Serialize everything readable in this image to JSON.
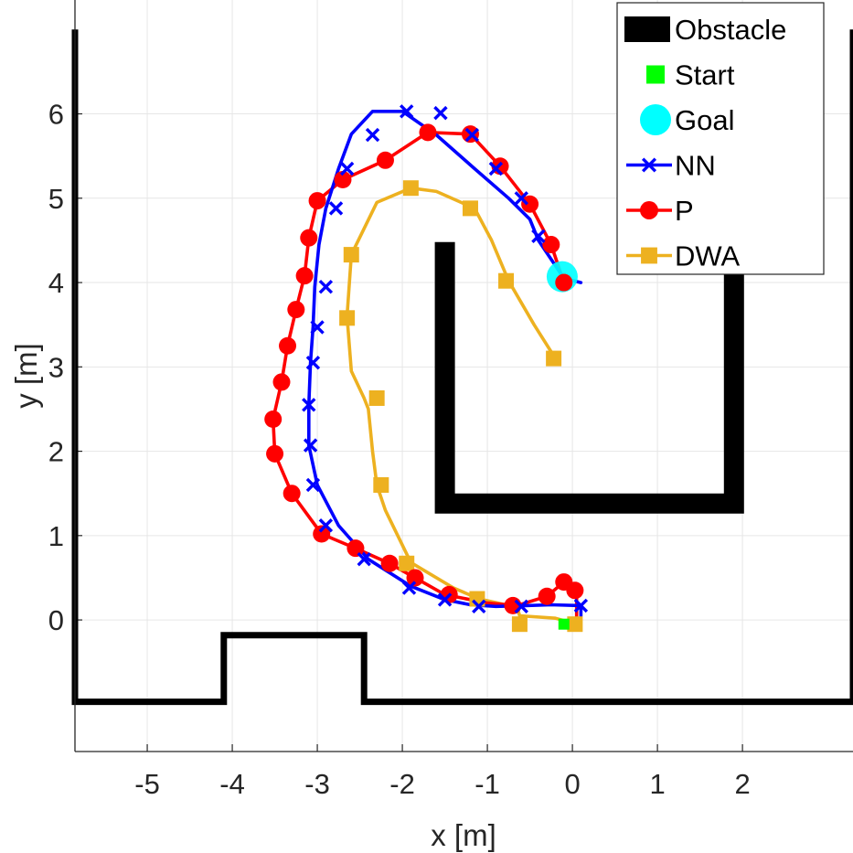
{
  "chart_data": {
    "type": "line",
    "xlabel": "x [m]",
    "ylabel": "y [m]",
    "xlim": [
      -5.85,
      3.3
    ],
    "ylim": [
      -1.56,
      7.35
    ],
    "xticks": [
      -5,
      -4,
      -3,
      -2,
      -1,
      0,
      1,
      2
    ],
    "yticks": [
      0,
      1,
      2,
      3,
      4,
      5,
      6
    ],
    "grid": true,
    "legend_position": "top-right",
    "obstacles": [
      {
        "name": "bottom-wall",
        "points": [
          [
            -5.85,
            7.0
          ],
          [
            -5.85,
            -0.97
          ],
          [
            -4.1,
            -0.97
          ],
          [
            -4.1,
            -0.18
          ],
          [
            -2.45,
            -0.18
          ],
          [
            -2.45,
            -0.97
          ],
          [
            3.3,
            -0.97
          ],
          [
            3.3,
            7.0
          ]
        ]
      },
      {
        "name": "u-obstacle",
        "points": [
          [
            -1.5,
            4.48
          ],
          [
            -1.5,
            1.38
          ],
          [
            1.9,
            1.38
          ],
          [
            1.9,
            4.48
          ]
        ]
      }
    ],
    "start": {
      "x": -0.1,
      "y": -0.05
    },
    "goal": {
      "x": -0.12,
      "y": 4.07
    },
    "series": [
      {
        "name": "NN",
        "color": "#0000ff",
        "marker": "x",
        "x": [
          0.1,
          0.1,
          -0.25,
          -0.55,
          -0.9,
          -1.2,
          -1.5,
          -1.9,
          -2.4,
          -2.75,
          -3.0,
          -3.1,
          -3.1,
          -3.08,
          -3.05,
          -3.03,
          -2.98,
          -2.9,
          -2.75,
          -2.6,
          -2.35,
          -2.0,
          -1.6,
          -1.15,
          -0.75,
          -0.5,
          -0.4,
          -0.1,
          0.1
        ],
        "y": [
          0.05,
          0.17,
          0.18,
          0.17,
          0.16,
          0.18,
          0.24,
          0.4,
          0.72,
          1.12,
          1.6,
          2.07,
          2.55,
          3.05,
          3.47,
          3.95,
          4.45,
          4.88,
          5.35,
          5.76,
          6.03,
          6.03,
          5.75,
          5.35,
          5.0,
          4.75,
          4.5,
          4.05,
          4.0
        ],
        "marker_x": [
          0.1,
          -0.6,
          -1.1,
          -1.5,
          -1.92,
          -2.45,
          -2.9,
          -3.05,
          -3.08,
          -3.1,
          -3.05,
          -3.0,
          -2.9,
          -2.78,
          -2.65,
          -2.35,
          -1.95,
          -1.55,
          -1.18,
          -0.9,
          -0.6,
          -0.4
        ],
        "marker_y": [
          0.17,
          0.16,
          0.16,
          0.24,
          0.38,
          0.72,
          1.12,
          1.6,
          2.07,
          2.55,
          3.05,
          3.47,
          3.95,
          4.88,
          5.35,
          5.75,
          6.03,
          6.01,
          5.75,
          5.35,
          5.0,
          4.55
        ]
      },
      {
        "name": "P",
        "color": "#ff0000",
        "marker": "o",
        "x": [
          0.05,
          0.05,
          -0.1,
          -0.3,
          -0.65,
          -1.0,
          -1.5,
          -1.85,
          -2.15,
          -2.55,
          -2.95,
          -3.3,
          -3.5,
          -3.52,
          -3.42,
          -3.35,
          -3.25,
          -3.15,
          -3.1,
          -3.0,
          -2.7,
          -2.2,
          -1.7,
          -1.2,
          -0.85,
          -0.5,
          -0.25,
          -0.1
        ],
        "y": [
          -0.05,
          0.35,
          0.45,
          0.28,
          0.17,
          0.2,
          0.3,
          0.5,
          0.67,
          0.85,
          1.02,
          1.5,
          1.97,
          2.38,
          2.82,
          3.25,
          3.68,
          4.08,
          4.53,
          4.97,
          5.22,
          5.45,
          5.78,
          5.76,
          5.38,
          4.93,
          4.45,
          4.0
        ],
        "marker_x": [
          0.03,
          -0.1,
          -0.3,
          -0.7,
          -1.45,
          -1.85,
          -2.15,
          -2.55,
          -2.95,
          -3.3,
          -3.5,
          -3.52,
          -3.42,
          -3.35,
          -3.25,
          -3.15,
          -3.1,
          -3.0,
          -2.7,
          -2.2,
          -1.7,
          -1.2,
          -0.85,
          -0.5,
          -0.25,
          -0.1
        ],
        "marker_y": [
          0.35,
          0.45,
          0.28,
          0.17,
          0.3,
          0.5,
          0.67,
          0.85,
          1.02,
          1.5,
          1.97,
          2.38,
          2.82,
          3.25,
          3.68,
          4.08,
          4.53,
          4.97,
          5.22,
          5.45,
          5.78,
          5.76,
          5.38,
          4.93,
          4.45,
          4.0
        ]
      },
      {
        "name": "DWA",
        "color": "#edb120",
        "marker": "s",
        "x": [
          0.05,
          -0.2,
          -0.62,
          -0.65,
          -1.1,
          -1.4,
          -1.9,
          -2.2,
          -2.3,
          -2.35,
          -2.4,
          -2.45,
          -2.6,
          -2.65,
          -2.6,
          -2.3,
          -1.9,
          -1.6,
          -1.15,
          -0.95,
          -0.75,
          -0.45,
          -0.2
        ],
        "y": [
          -0.05,
          0.02,
          0.05,
          0.15,
          0.25,
          0.38,
          0.68,
          1.3,
          1.6,
          2.0,
          2.5,
          2.63,
          2.95,
          3.6,
          4.33,
          4.95,
          5.12,
          5.08,
          4.88,
          4.5,
          4.02,
          3.5,
          3.1
        ],
        "marker_x": [
          0.03,
          -0.62,
          -1.12,
          -1.95,
          -2.25,
          -2.3,
          -2.65,
          -2.6,
          -1.9,
          -1.2,
          -0.78,
          -0.22
        ],
        "marker_y": [
          -0.05,
          -0.05,
          0.25,
          0.67,
          1.6,
          2.63,
          3.58,
          4.33,
          5.12,
          4.88,
          4.02,
          3.1
        ]
      }
    ],
    "legend": [
      {
        "label": "Obstacle",
        "kind": "obstacle",
        "color": "#000000"
      },
      {
        "label": "Start",
        "kind": "start",
        "color": "#00ff00"
      },
      {
        "label": "Goal",
        "kind": "goal",
        "color": "#00ffff"
      },
      {
        "label": "NN",
        "kind": "series",
        "series": 0
      },
      {
        "label": "P",
        "kind": "series",
        "series": 1
      },
      {
        "label": "DWA",
        "kind": "series",
        "series": 2
      }
    ]
  }
}
